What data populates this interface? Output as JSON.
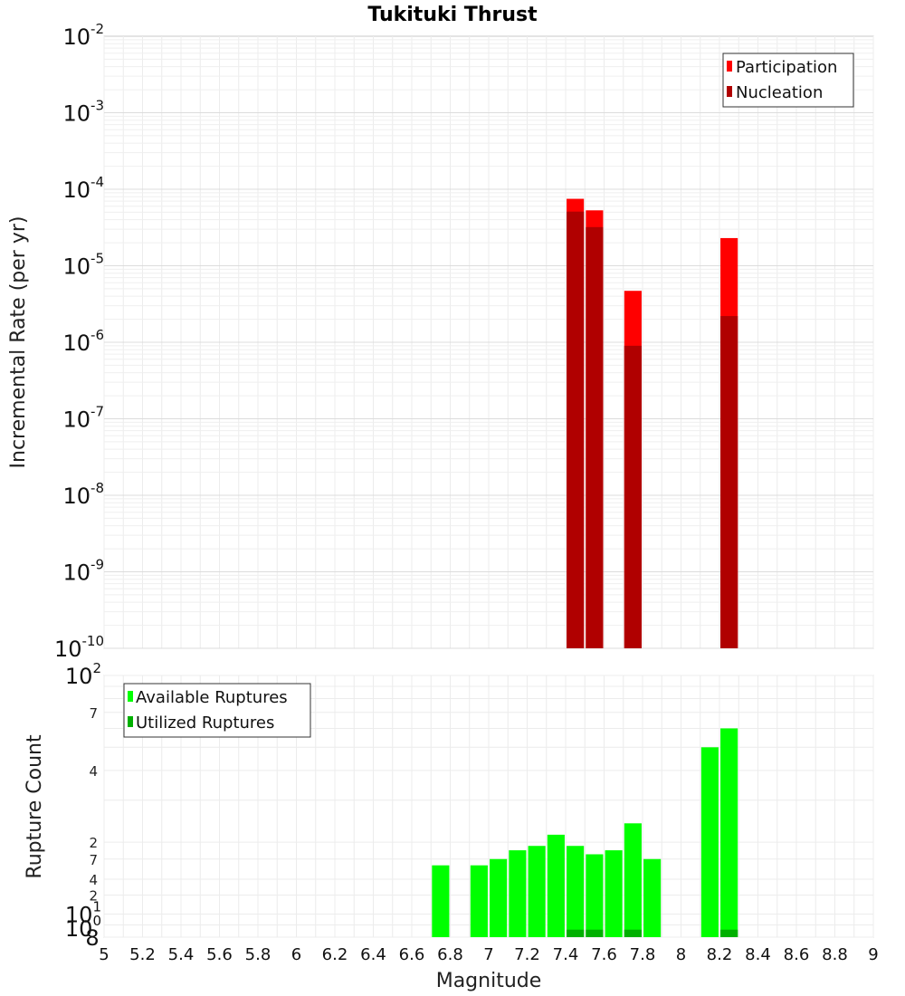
{
  "chart_data": [
    {
      "type": "bar",
      "title": "Tukituki Thrust",
      "xlabel": "",
      "ylabel": "Incremental Rate (per yr)",
      "xlim": [
        5,
        9
      ],
      "ylim": [
        1e-10,
        0.01
      ],
      "yscale": "log",
      "grid": true,
      "legend_position": "top-right",
      "y_tick_exponents": [
        "-10",
        "-9",
        "-8",
        "-7",
        "-6",
        "-5",
        "-4",
        "-3",
        "-2"
      ],
      "y_tick_base": "10",
      "bar_width": 0.09,
      "series": [
        {
          "name": "Participation",
          "color": "#ff0000",
          "x": [
            7.45,
            7.55,
            7.75,
            8.25
          ],
          "values": [
            7.5e-05,
            5.3e-05,
            4.7e-06,
            2.3e-05
          ]
        },
        {
          "name": "Nucleation",
          "color": "#b00000",
          "x": [
            7.45,
            7.55,
            7.75,
            8.25
          ],
          "values": [
            5.1e-05,
            3.2e-05,
            9e-07,
            2.2e-06
          ]
        }
      ]
    },
    {
      "type": "bar",
      "title": "",
      "xlabel": "Magnitude",
      "ylabel": "Rupture Count",
      "xlim": [
        5,
        9
      ],
      "ylim": [
        8,
        100
      ],
      "yscale": "log",
      "grid": true,
      "legend_position": "top-left",
      "x_ticks": [
        "5",
        "5.2",
        "5.4",
        "5.6",
        "5.8",
        "6",
        "6.2",
        "6.4",
        "6.6",
        "6.8",
        "7",
        "7.2",
        "7.4",
        "7.6",
        "7.8",
        "8",
        "8.2",
        "8.4",
        "8.6",
        "8.8",
        "9"
      ],
      "y_major_ticks": [
        {
          "value": 10,
          "base": "10",
          "exp": "1"
        },
        {
          "value": 100,
          "base": "10",
          "exp": "2"
        }
      ],
      "y_bottom_tick": {
        "base": "10",
        "exp": "0",
        "overlay": "8"
      },
      "y_minor_ticks": [
        {
          "value": 20,
          "label": "2"
        },
        {
          "value": 40,
          "label": "4"
        },
        {
          "value": 70,
          "label": "7"
        },
        {
          "value": 12,
          "label": "2"
        },
        {
          "value": 14,
          "label": "4"
        },
        {
          "value": 17,
          "label": "7"
        }
      ],
      "bar_width": 0.09,
      "series": [
        {
          "name": "Available Ruptures",
          "color": "#00ff00",
          "x": [
            6.75,
            6.95,
            7.05,
            7.15,
            7.25,
            7.35,
            7.45,
            7.55,
            7.65,
            7.75,
            7.85,
            8.15,
            8.25
          ],
          "values": [
            16,
            16,
            17,
            18.5,
            19.3,
            21.5,
            19.3,
            17.8,
            18.5,
            24,
            17,
            50,
            60
          ]
        },
        {
          "name": "Utilized Ruptures",
          "color": "#00b000",
          "x": [
            7.45,
            7.55,
            7.75,
            8.25
          ],
          "values": [
            8.6,
            8.6,
            8.6,
            8.6
          ]
        }
      ]
    }
  ]
}
